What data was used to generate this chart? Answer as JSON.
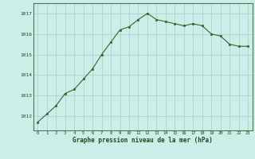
{
  "x": [
    0,
    1,
    2,
    3,
    4,
    5,
    6,
    7,
    8,
    9,
    10,
    11,
    12,
    13,
    14,
    15,
    16,
    17,
    18,
    19,
    20,
    21,
    22,
    23
  ],
  "y": [
    1011.7,
    1012.1,
    1012.5,
    1013.1,
    1013.3,
    1013.8,
    1014.3,
    1015.0,
    1015.6,
    1016.2,
    1016.35,
    1016.7,
    1017.0,
    1016.7,
    1016.6,
    1016.5,
    1016.4,
    1016.5,
    1016.4,
    1016.0,
    1015.9,
    1015.5,
    1015.4,
    1015.4
  ],
  "line_color": "#2d6a2d",
  "marker_color": "#2d6a2d",
  "bg_color": "#cceee8",
  "grid_color": "#aad4ce",
  "border_color": "#4a7a4a",
  "xlabel": "Graphe pression niveau de la mer (hPa)",
  "xlabel_color": "#1a4a1a",
  "xtick_labels": [
    "0",
    "1",
    "2",
    "3",
    "4",
    "5",
    "6",
    "7",
    "8",
    "9",
    "10",
    "11",
    "12",
    "13",
    "14",
    "15",
    "16",
    "17",
    "18",
    "19",
    "20",
    "21",
    "22",
    "23"
  ],
  "ytick_labels": [
    "1012",
    "1013",
    "1014",
    "1015",
    "1016",
    "1017"
  ],
  "ylim": [
    1011.3,
    1017.5
  ],
  "xlim": [
    -0.5,
    23.5
  ]
}
